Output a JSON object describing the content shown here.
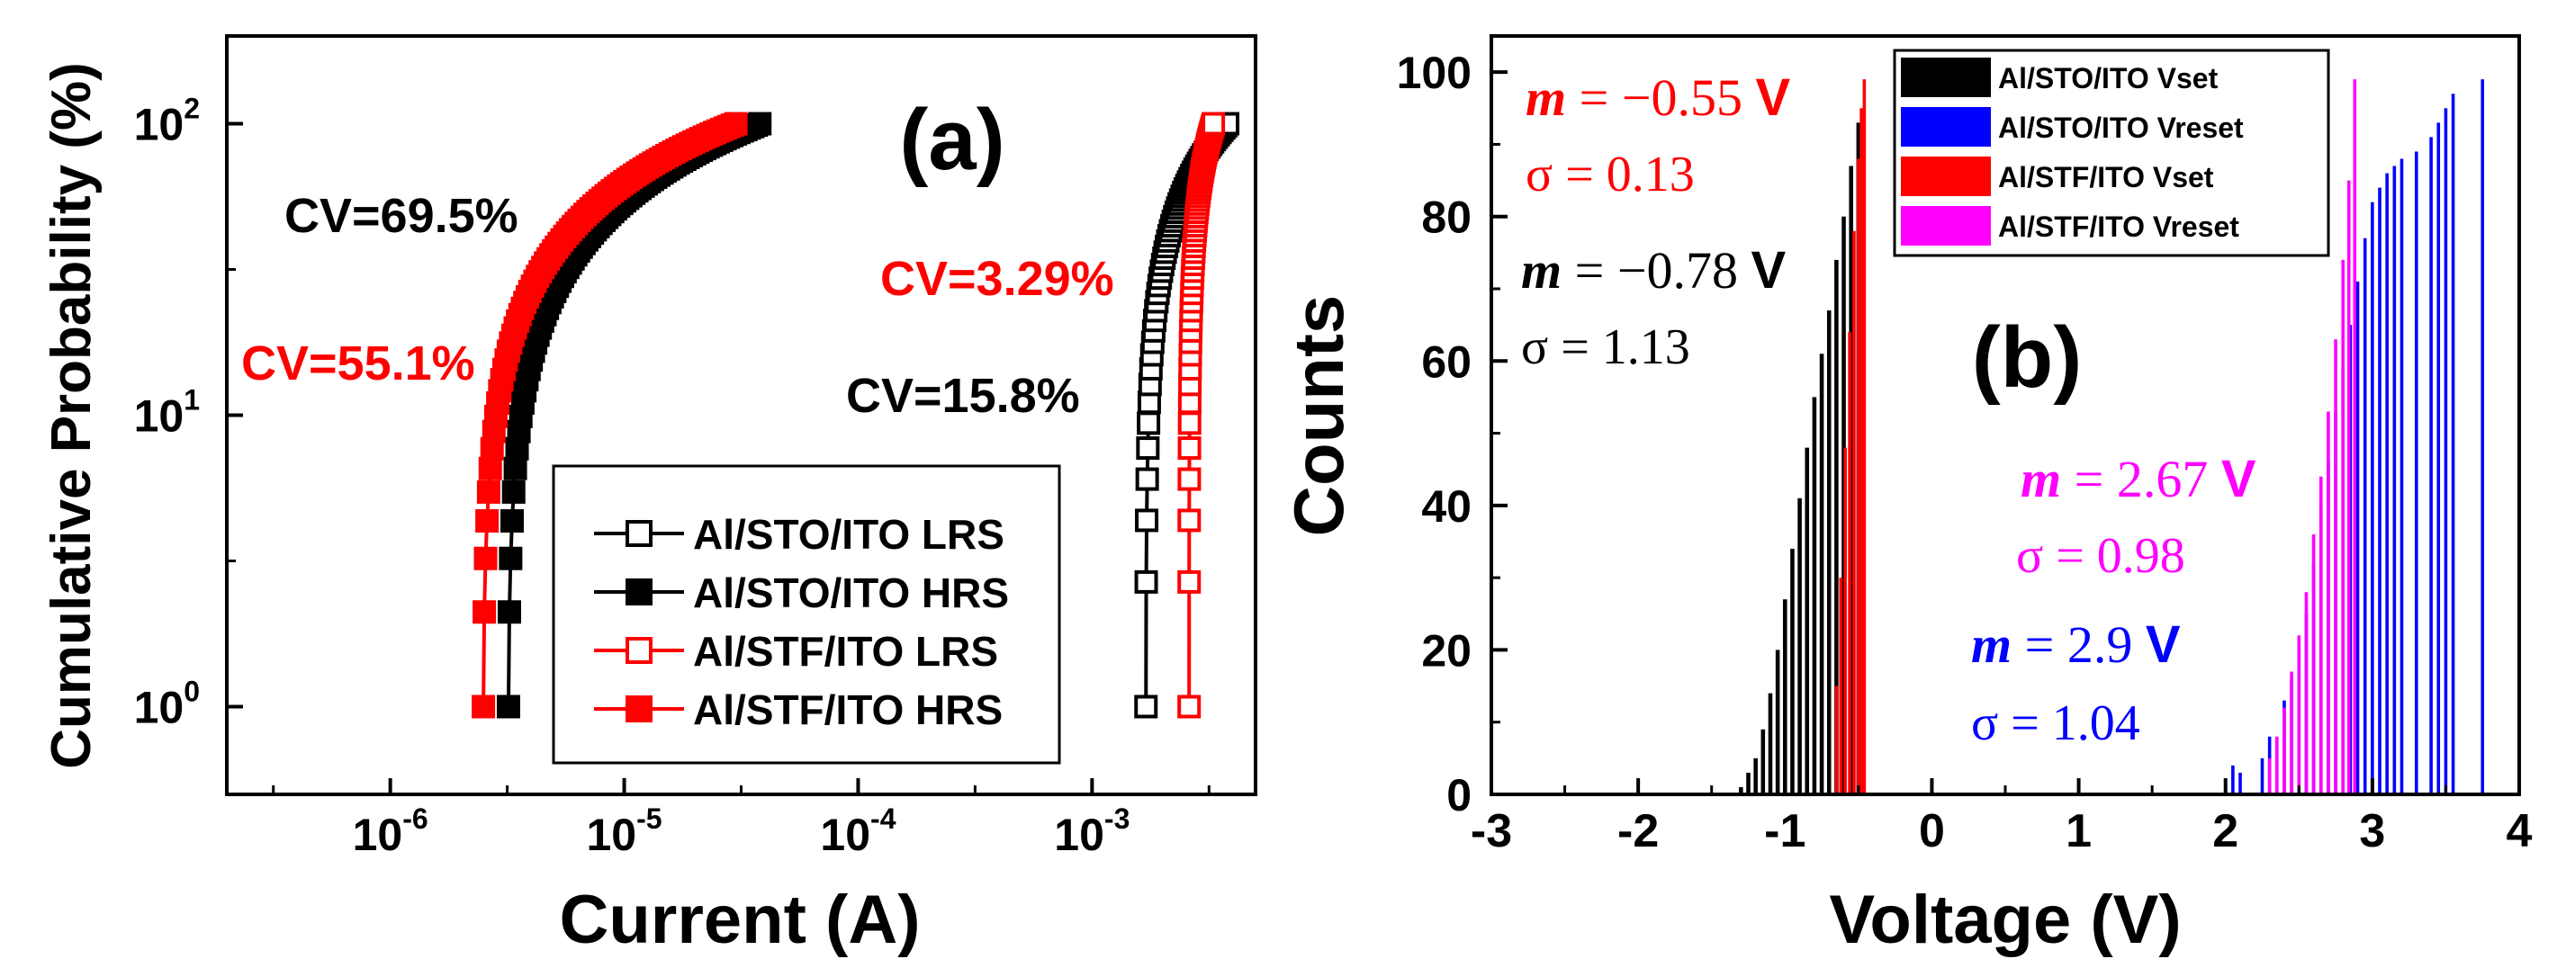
{
  "chart_data": [
    {
      "panel_label": "(a)",
      "type": "scatter",
      "xscale": "log",
      "yscale": "log",
      "xlabel": "Current (A)",
      "ylabel": "Cumulative Probability (%)",
      "xlim": [
        2e-07,
        0.005
      ],
      "ylim": [
        0.5,
        200
      ],
      "x_ticks": [
        {
          "base": "10",
          "exp": "-6"
        },
        {
          "base": "10",
          "exp": "-5"
        },
        {
          "base": "10",
          "exp": "-4"
        },
        {
          "base": "10",
          "exp": "-3"
        }
      ],
      "x_tick_values": [
        1e-06,
        1e-05,
        0.0001,
        0.001
      ],
      "y_ticks": [
        {
          "base": "10",
          "exp": "0"
        },
        {
          "base": "10",
          "exp": "1"
        },
        {
          "base": "10",
          "exp": "2"
        }
      ],
      "y_tick_values": [
        1,
        10,
        100
      ],
      "legend_position": "lower-right",
      "series": [
        {
          "name": "Al/STO/ITO LRS",
          "color": "#000000",
          "marker": "open-square",
          "current_range": [
            0.0017,
            0.0038
          ],
          "probability_range": [
            1,
            100
          ]
        },
        {
          "name": "Al/STO/ITO HRS",
          "color": "#000000",
          "marker": "filled-square",
          "current_range": [
            3.2e-06,
            3.8e-05
          ],
          "probability_range": [
            1,
            100
          ]
        },
        {
          "name": "Al/STF/ITO LRS",
          "color": "#ff0000",
          "marker": "open-square",
          "current_range": [
            0.0026,
            0.0033
          ],
          "probability_range": [
            1,
            100
          ]
        },
        {
          "name": "Al/STF/ITO HRS",
          "color": "#ff0000",
          "marker": "filled-square",
          "current_range": [
            2.5e-06,
            3e-05
          ],
          "probability_range": [
            1,
            100
          ]
        }
      ],
      "annotations": [
        {
          "text": "CV=69.5%",
          "color": "#000000"
        },
        {
          "text": "CV=55.1%",
          "color": "#ff0000"
        },
        {
          "text": "CV=3.29%",
          "color": "#ff0000"
        },
        {
          "text": "CV=15.8%",
          "color": "#000000"
        }
      ]
    },
    {
      "panel_label": "(b)",
      "type": "bar",
      "xlabel": "Voltage (V)",
      "ylabel": "Counts",
      "xlim": [
        -3,
        4
      ],
      "ylim": [
        0,
        105
      ],
      "x_ticks": [
        "-3",
        "-2",
        "-1",
        "0",
        "1",
        "2",
        "3",
        "4"
      ],
      "y_ticks": [
        "0",
        "20",
        "40",
        "60",
        "80",
        "100"
      ],
      "legend_position": "top-right",
      "series": [
        {
          "name": "Al/STO/ITO Vset",
          "color": "#000000",
          "x": [
            -1.3,
            -1.25,
            -1.2,
            -1.15,
            -1.1,
            -1.05,
            -1.0,
            -0.95,
            -0.9,
            -0.85,
            -0.8,
            -0.75,
            -0.7,
            -0.65,
            -0.6,
            -0.55,
            -0.5
          ],
          "y": [
            1,
            3,
            5,
            9,
            14,
            20,
            27,
            34,
            41,
            48,
            55,
            61,
            67,
            74,
            80,
            87,
            93
          ]
        },
        {
          "name": "Al/STO/ITO Vreset",
          "color": "#0000ff",
          "x": [
            2.05,
            2.1,
            2.25,
            2.3,
            2.4,
            2.45,
            2.5,
            2.55,
            2.6,
            2.65,
            2.7,
            2.75,
            2.8,
            2.85,
            2.9,
            2.95,
            3.0,
            3.05,
            3.1,
            3.15,
            3.2,
            3.3,
            3.4,
            3.45,
            3.5,
            3.55,
            3.75
          ],
          "y": [
            4,
            3,
            5,
            8,
            13,
            16,
            20,
            25,
            32,
            40,
            46,
            53,
            59,
            65,
            71,
            77,
            82,
            84,
            86,
            87,
            88,
            89,
            91,
            93,
            95,
            97,
            99
          ]
        },
        {
          "name": "Al/STF/ITO Vset",
          "color": "#ff0000",
          "x": [
            -0.65,
            -0.62,
            -0.59,
            -0.56,
            -0.53,
            -0.5,
            -0.48,
            -0.46
          ],
          "y": [
            15,
            30,
            48,
            64,
            78,
            88,
            95,
            99
          ]
        },
        {
          "name": "Al/STF/ITO Vreset",
          "color": "#ff00ff",
          "x": [
            2.3,
            2.35,
            2.4,
            2.45,
            2.5,
            2.55,
            2.6,
            2.65,
            2.7,
            2.75,
            2.8,
            2.84,
            2.88
          ],
          "y": [
            5,
            8,
            12,
            17,
            22,
            28,
            36,
            44,
            53,
            63,
            74,
            85,
            99
          ]
        }
      ],
      "annotations": [
        {
          "prefix": "m",
          "eq": " = −0.55 ",
          "unit": "V",
          "sigma": "σ = 0.13",
          "color": "#ff0000"
        },
        {
          "prefix": "m",
          "eq": " = −0.78 ",
          "unit": "V",
          "sigma": "σ = 1.13",
          "color": "#000000"
        },
        {
          "prefix": "m",
          "eq": " = 2.67 ",
          "unit": "V",
          "sigma": "σ = 0.98",
          "color": "#ff00ff"
        },
        {
          "prefix": "m",
          "eq": " = 2.9 ",
          "unit": "V",
          "sigma": "σ = 1.04",
          "color": "#0000ff"
        }
      ]
    }
  ]
}
